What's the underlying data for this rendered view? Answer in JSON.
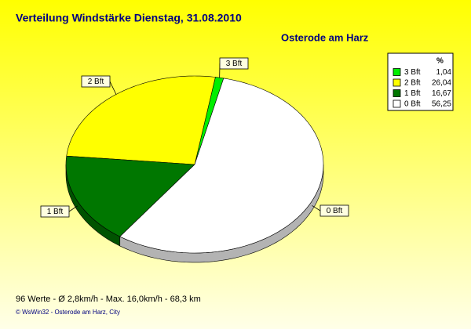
{
  "chart_data": {
    "type": "pie",
    "title": "Verteilung Windstärke  Dienstag, 31.08.2010",
    "subtitle": "Osterode am Harz",
    "legend_title": "%",
    "categories": [
      "3 Bft",
      "2 Bft",
      "1 Bft",
      "0 Bft"
    ],
    "values": [
      1.04,
      26.04,
      16.67,
      56.25
    ],
    "value_labels": [
      "1,04",
      "26,04",
      "16,67",
      "56,25"
    ],
    "colors": [
      "#00ee00",
      "#ffff00",
      "#007700",
      "#ffffff"
    ],
    "footer": "96 Werte   -   Ø 2,8km/h  -  Max. 16,0km/h   -   68,3 km",
    "credit": "© WsWin32  -  Osterode am Harz, City",
    "legend": "top-right"
  }
}
